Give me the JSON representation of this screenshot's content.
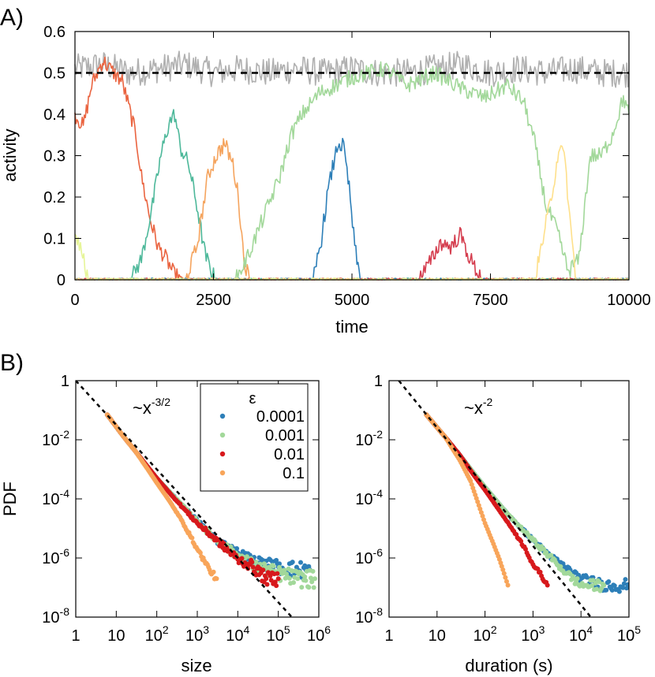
{
  "chart_data": [
    {
      "panel": "A)",
      "type": "line",
      "xlabel": "time",
      "ylabel": "activity",
      "xlim": [
        0,
        10000
      ],
      "ylim": [
        0,
        0.6
      ],
      "xticks": [
        "0",
        "2500",
        "5000",
        "7500",
        "10000"
      ],
      "yticks": [
        "0",
        "0.1",
        "0.2",
        "0.3",
        "0.4",
        "0.5",
        "0.6"
      ],
      "reference_line": {
        "y": 0.5,
        "style": "dashed",
        "color": "#000000"
      },
      "series": [
        {
          "color": "#b0b0b0",
          "points": [
            [
              0,
              0.51
            ],
            [
              500,
              0.52
            ],
            [
              1000,
              0.5
            ],
            [
              1500,
              0.51
            ],
            [
              2000,
              0.52
            ],
            [
              2500,
              0.5
            ],
            [
              3000,
              0.51
            ],
            [
              3500,
              0.5
            ],
            [
              4000,
              0.51
            ],
            [
              4500,
              0.5
            ],
            [
              5000,
              0.51
            ],
            [
              5500,
              0.5
            ],
            [
              6000,
              0.5
            ],
            [
              6500,
              0.51
            ],
            [
              7000,
              0.52
            ],
            [
              7500,
              0.5
            ],
            [
              8000,
              0.51
            ],
            [
              8500,
              0.5
            ],
            [
              9000,
              0.51
            ],
            [
              9500,
              0.5
            ],
            [
              10000,
              0.5
            ]
          ]
        },
        {
          "color": "#ea6440",
          "points": [
            [
              0,
              0.4
            ],
            [
              150,
              0.37
            ],
            [
              300,
              0.47
            ],
            [
              500,
              0.53
            ],
            [
              700,
              0.5
            ],
            [
              850,
              0.48
            ],
            [
              950,
              0.43
            ],
            [
              1100,
              0.35
            ],
            [
              1200,
              0.25
            ],
            [
              1350,
              0.15
            ],
            [
              1500,
              0.08
            ],
            [
              1650,
              0.05
            ],
            [
              1800,
              0.01
            ],
            [
              2000,
              0.0
            ],
            [
              10000,
              0.0
            ]
          ]
        },
        {
          "color": "#4db89a",
          "points": [
            [
              0,
              0.0
            ],
            [
              1000,
              0.0
            ],
            [
              1200,
              0.05
            ],
            [
              1400,
              0.18
            ],
            [
              1550,
              0.3
            ],
            [
              1700,
              0.38
            ],
            [
              1800,
              0.4
            ],
            [
              1900,
              0.32
            ],
            [
              2050,
              0.28
            ],
            [
              2200,
              0.18
            ],
            [
              2350,
              0.06
            ],
            [
              2500,
              0.01
            ],
            [
              2600,
              0.0
            ],
            [
              10000,
              0.0
            ]
          ]
        },
        {
          "color": "#f5a45e",
          "points": [
            [
              0,
              0.0
            ],
            [
              2000,
              0.0
            ],
            [
              2200,
              0.08
            ],
            [
              2400,
              0.25
            ],
            [
              2550,
              0.3
            ],
            [
              2700,
              0.33
            ],
            [
              2850,
              0.28
            ],
            [
              2950,
              0.2
            ],
            [
              3050,
              0.05
            ],
            [
              3150,
              0.0
            ],
            [
              10000,
              0.0
            ]
          ]
        },
        {
          "color": "#a2d89a",
          "points": [
            [
              0,
              0.0
            ],
            [
              2900,
              0.0
            ],
            [
              3100,
              0.05
            ],
            [
              3400,
              0.15
            ],
            [
              3700,
              0.25
            ],
            [
              3900,
              0.35
            ],
            [
              4100,
              0.4
            ],
            [
              4400,
              0.45
            ],
            [
              4700,
              0.47
            ],
            [
              5000,
              0.49
            ],
            [
              5300,
              0.5
            ],
            [
              5600,
              0.51
            ],
            [
              6000,
              0.47
            ],
            [
              6500,
              0.5
            ],
            [
              7000,
              0.46
            ],
            [
              7400,
              0.44
            ],
            [
              7800,
              0.47
            ],
            [
              8100,
              0.43
            ],
            [
              8300,
              0.33
            ],
            [
              8500,
              0.18
            ],
            [
              8700,
              0.12
            ],
            [
              8900,
              0.02
            ],
            [
              9100,
              0.05
            ],
            [
              9300,
              0.3
            ],
            [
              9500,
              0.3
            ],
            [
              9700,
              0.35
            ],
            [
              9900,
              0.44
            ],
            [
              10000,
              0.4
            ]
          ]
        },
        {
          "color": "#2d7fb8",
          "points": [
            [
              0,
              0.0
            ],
            [
              4300,
              0.0
            ],
            [
              4450,
              0.1
            ],
            [
              4550,
              0.2
            ],
            [
              4650,
              0.27
            ],
            [
              4750,
              0.33
            ],
            [
              4850,
              0.32
            ],
            [
              4950,
              0.22
            ],
            [
              5050,
              0.08
            ],
            [
              5150,
              0.0
            ],
            [
              10000,
              0.0
            ]
          ]
        },
        {
          "color": "#d53e4f",
          "points": [
            [
              0,
              0.0
            ],
            [
              6200,
              0.0
            ],
            [
              6400,
              0.04
            ],
            [
              6600,
              0.09
            ],
            [
              6800,
              0.08
            ],
            [
              6950,
              0.11
            ],
            [
              7100,
              0.06
            ],
            [
              7250,
              0.02
            ],
            [
              7400,
              0.0
            ],
            [
              10000,
              0.0
            ]
          ]
        },
        {
          "color": "#fee08b",
          "points": [
            [
              0,
              0.0
            ],
            [
              8300,
              0.0
            ],
            [
              8450,
              0.1
            ],
            [
              8600,
              0.2
            ],
            [
              8750,
              0.33
            ],
            [
              8850,
              0.28
            ],
            [
              8950,
              0.12
            ],
            [
              9050,
              0.0
            ],
            [
              10000,
              0.0
            ]
          ]
        },
        {
          "color": "#e6f598",
          "points": [
            [
              0,
              0.12
            ],
            [
              100,
              0.08
            ],
            [
              200,
              0.02
            ],
            [
              300,
              0.0
            ],
            [
              10000,
              0.0
            ]
          ]
        }
      ]
    },
    {
      "panel": "B)",
      "type": "scatter",
      "scale": "log-log",
      "xlabel": "size",
      "ylabel": "PDF",
      "xlim": [
        1,
        1000000
      ],
      "ylim": [
        1e-08,
        1
      ],
      "xticks": [
        "1",
        "10",
        "10^2",
        "10^3",
        "10^4",
        "10^5",
        "10^6"
      ],
      "yticks": [
        "10^-8",
        "10^-6",
        "10^-4",
        "10^-2",
        "1"
      ],
      "reference_line": {
        "label": "~x",
        "exponent": "-3/2",
        "slope": -1.5,
        "anchor": [
          1,
          1
        ],
        "style": "dashed"
      },
      "legend": {
        "title": "ε",
        "placement": "top-right",
        "entries": [
          "0.0001",
          "0.001",
          "0.01",
          "0.1"
        ]
      },
      "series": [
        {
          "name": "0.0001",
          "color": "#2d7fb8",
          "x": [
            6,
            15,
            30,
            60,
            100,
            300,
            1000,
            3000,
            10000,
            30000,
            100000,
            300000,
            600000
          ],
          "y": [
            0.07,
            0.013,
            0.004,
            0.0012,
            0.0005,
            0.0001,
            1.8e-05,
            4e-06,
            1.5e-06,
            7e-07,
            5e-07,
            4e-07,
            4e-07
          ]
        },
        {
          "name": "0.001",
          "color": "#a2d89a",
          "x": [
            6,
            15,
            30,
            60,
            100,
            300,
            1000,
            3000,
            10000,
            30000,
            100000,
            300000,
            800000
          ],
          "y": [
            0.07,
            0.013,
            0.004,
            0.0012,
            0.0005,
            0.0001,
            1.7e-05,
            4e-06,
            1.2e-06,
            5e-07,
            3e-07,
            2e-07,
            2e-07
          ]
        },
        {
          "name": "0.01",
          "color": "#d7191c",
          "x": [
            6,
            15,
            30,
            60,
            100,
            300,
            1000,
            3000,
            10000,
            20000,
            50000,
            100000
          ],
          "y": [
            0.07,
            0.013,
            0.004,
            0.0012,
            0.0005,
            9e-05,
            1.5e-05,
            4e-06,
            9e-07,
            6e-07,
            2e-07,
            2e-07
          ]
        },
        {
          "name": "0.1",
          "color": "#f8a55a",
          "x": [
            6,
            15,
            30,
            60,
            100,
            200,
            400,
            700,
            1000,
            1500,
            2000,
            3000
          ],
          "y": [
            0.07,
            0.013,
            0.004,
            0.001,
            0.00035,
            9e-05,
            2e-05,
            5e-06,
            2e-06,
            8e-07,
            4e-07,
            2e-07
          ]
        }
      ]
    },
    {
      "type": "scatter",
      "scale": "log-log",
      "xlabel": "duration (s)",
      "xlim": [
        1,
        100000
      ],
      "ylim": [
        1e-08,
        1
      ],
      "xticks": [
        "1",
        "10",
        "10^2",
        "10^3",
        "10^4",
        "10^5"
      ],
      "yticks": [
        "10^-8",
        "10^-6",
        "10^-4",
        "10^-2",
        "1"
      ],
      "reference_line": {
        "label": "~x",
        "exponent": "-2",
        "slope": -2,
        "anchor": [
          1.6,
          1
        ],
        "style": "dashed"
      },
      "series": [
        {
          "name": "0.0001",
          "color": "#2d7fb8",
          "x": [
            6,
            15,
            30,
            60,
            100,
            300,
            1000,
            3000,
            10000,
            30000,
            100000
          ],
          "y": [
            0.07,
            0.012,
            0.003,
            0.0007,
            0.00025,
            3e-05,
            4e-06,
            8e-07,
            2e-07,
            1.2e-07,
            1.2e-07
          ]
        },
        {
          "name": "0.001",
          "color": "#a2d89a",
          "x": [
            6,
            15,
            30,
            60,
            100,
            300,
            1000,
            3000,
            5000,
            10000,
            30000
          ],
          "y": [
            0.07,
            0.012,
            0.003,
            0.0007,
            0.00025,
            3e-05,
            4e-06,
            7e-07,
            3e-07,
            1.2e-07,
            1.2e-07
          ]
        },
        {
          "name": "0.01",
          "color": "#d7191c",
          "x": [
            6,
            15,
            30,
            60,
            100,
            200,
            400,
            700,
            1000,
            1500,
            2000
          ],
          "y": [
            0.07,
            0.012,
            0.003,
            0.0006,
            0.0002,
            4e-05,
            8e-06,
            2e-06,
            6e-07,
            2.5e-07,
            1.2e-07
          ]
        },
        {
          "name": "0.1",
          "color": "#f8a55a",
          "x": [
            6,
            15,
            30,
            50,
            70,
            100,
            150,
            200,
            250,
            300
          ],
          "y": [
            0.07,
            0.012,
            0.002,
            0.0004,
            8e-05,
            1.5e-05,
            3e-06,
            9e-07,
            3e-07,
            1.2e-07
          ]
        }
      ]
    }
  ]
}
